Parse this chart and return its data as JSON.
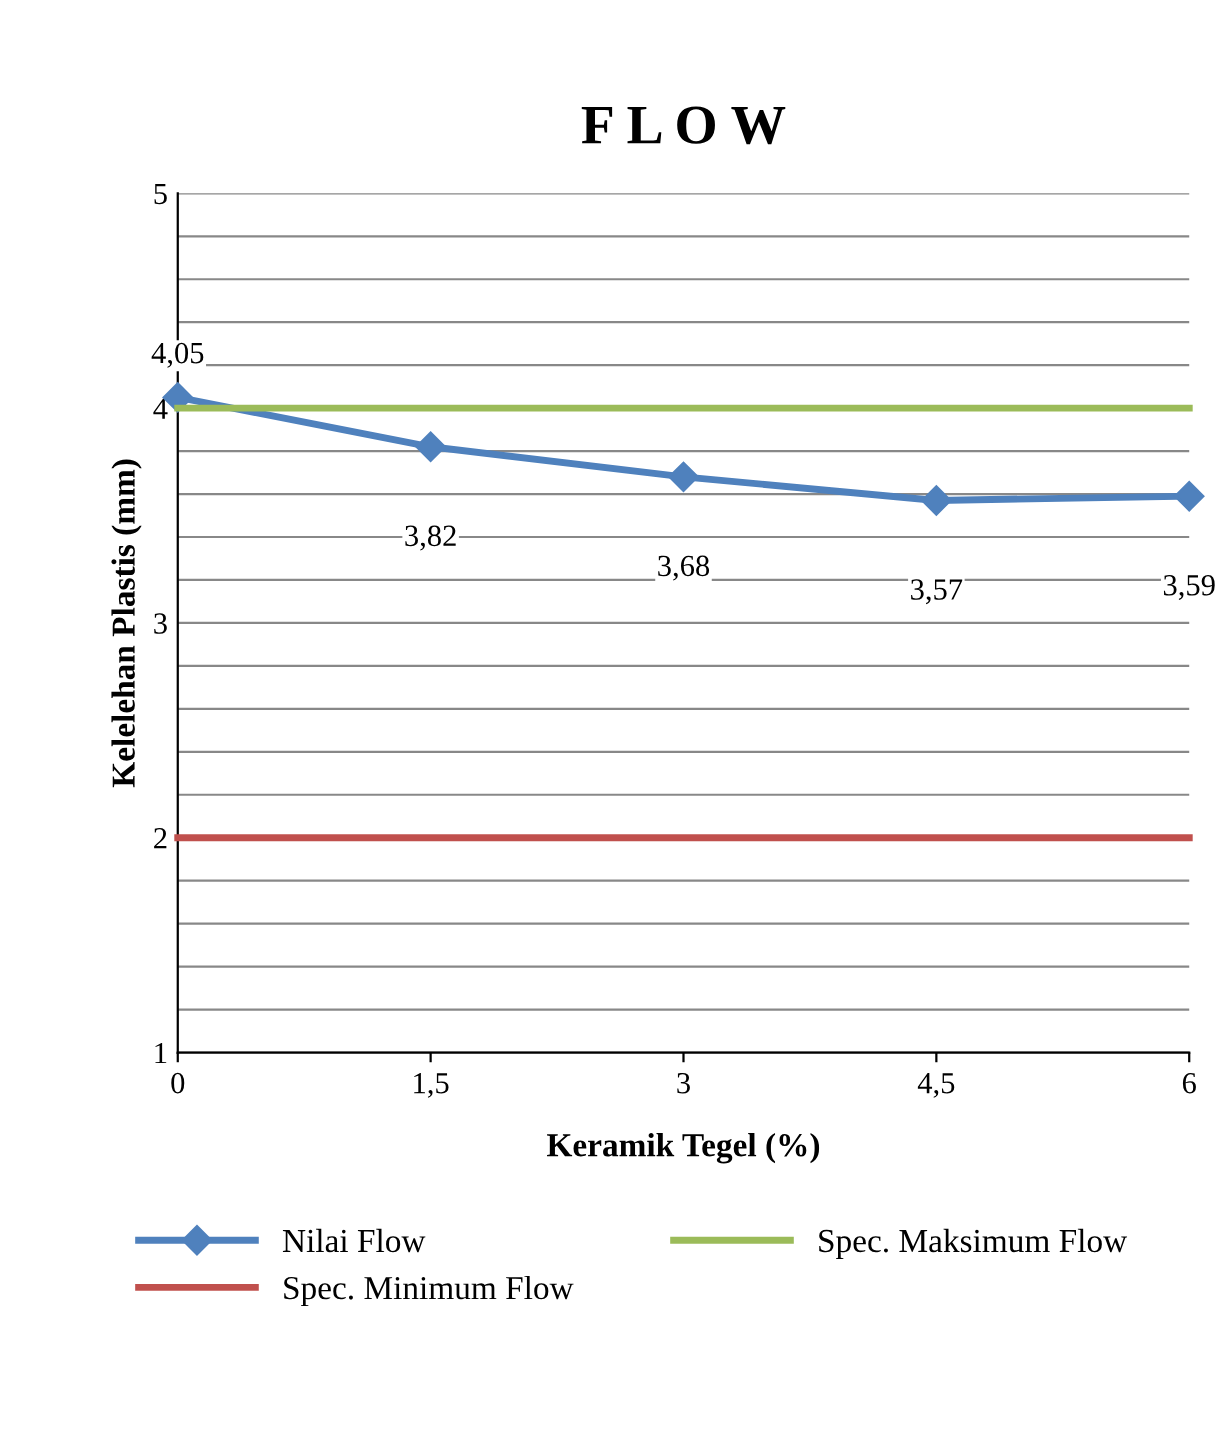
{
  "chart_data": {
    "type": "line",
    "title": "F L O W",
    "xlabel": "Keramik Tegel (%)",
    "ylabel": "Kelelehan Plastis (mm)",
    "xlim": [
      0,
      6
    ],
    "xticks": [
      0,
      {
        "value": 1.5,
        "label": "1,5"
      },
      3,
      {
        "value": 4.5,
        "label": "4,5"
      },
      6
    ],
    "ylim": [
      1,
      5
    ],
    "yticks": [
      1,
      {
        "value": 1.2,
        "label": null
      },
      {
        "value": 1.4,
        "label": null
      },
      {
        "value": 1.6,
        "label": null
      },
      {
        "value": 1.8,
        "label": null
      },
      2,
      {
        "value": 2.2,
        "label": null
      },
      {
        "value": 2.4,
        "label": null
      },
      {
        "value": 2.6,
        "label": null
      },
      {
        "value": 2.8,
        "label": null
      },
      3,
      {
        "value": 3.2,
        "label": null
      },
      {
        "value": 3.4,
        "label": null
      },
      {
        "value": 3.6,
        "label": null
      },
      {
        "value": 3.8,
        "label": null
      },
      4,
      {
        "value": 4.2,
        "label": null
      },
      {
        "value": 4.4,
        "label": null
      },
      {
        "value": 4.6,
        "label": null
      },
      {
        "value": 4.8,
        "label": null
      },
      5
    ],
    "grid": "y",
    "legend": "bottom",
    "series": [
      {
        "name": "Nilai Flow",
        "color": "#4f81bd",
        "marker": "diamond",
        "x": [
          0,
          1.5,
          3,
          4.5,
          6
        ],
        "values": [
          4.05,
          3.82,
          3.68,
          3.57,
          3.59
        ],
        "value_labels": [
          "4,05",
          "3,82",
          "3,68",
          "3,57",
          "3,59"
        ]
      },
      {
        "name": "Spec. Minimum Flow",
        "color": "#c0504d",
        "marker": "none",
        "x": [
          0,
          6
        ],
        "values": [
          2,
          2
        ]
      },
      {
        "name": "Spec. Maksimum Flow",
        "color": "#9bbb59",
        "marker": "none",
        "x": [
          0,
          6
        ],
        "values": [
          4,
          4
        ]
      }
    ]
  }
}
